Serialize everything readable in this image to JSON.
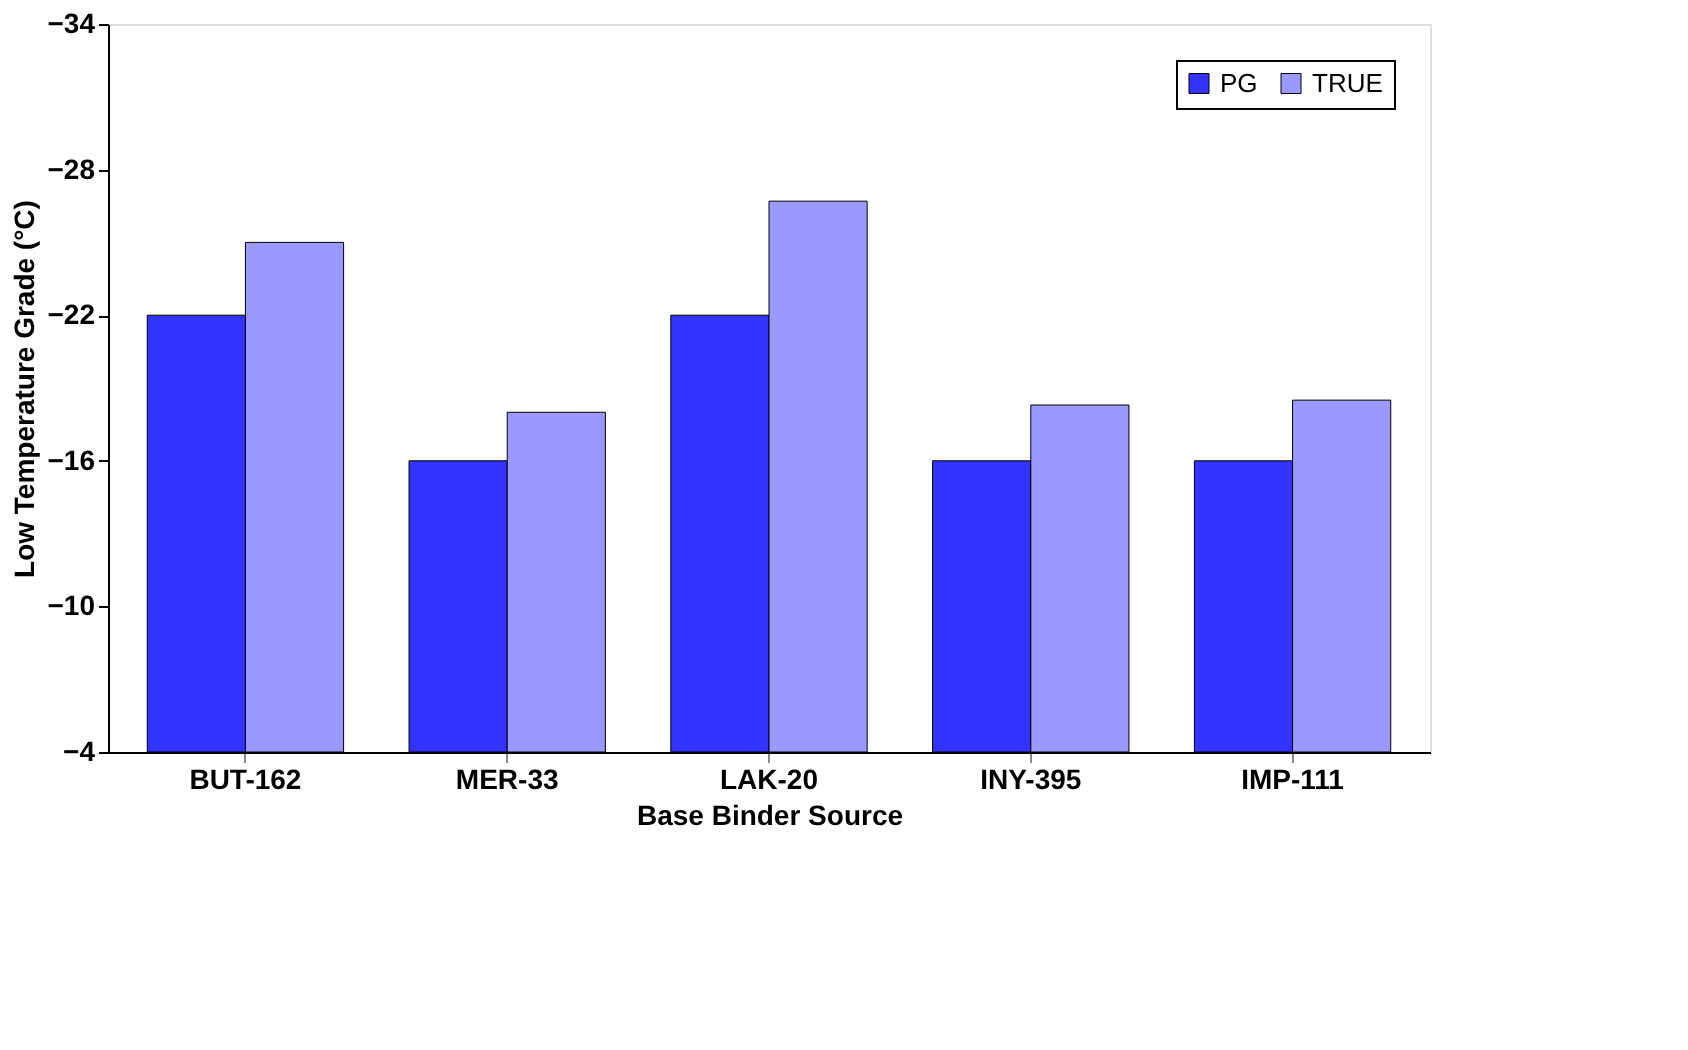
{
  "chart_data": {
    "type": "bar",
    "xlabel": "Base Binder Source",
    "ylabel": "Low Temperature Grade (°C)",
    "categories": [
      "BUT-162",
      "MER-33",
      "LAK-20",
      "INY-395",
      "IMP-111"
    ],
    "series": [
      {
        "name": "PG",
        "color": "#3333ff",
        "values": [
          -22,
          -16,
          -22,
          -16,
          -16
        ]
      },
      {
        "name": "TRUE",
        "color": "#9999ff",
        "values": [
          -25.0,
          -18.0,
          -26.7,
          -18.3,
          -18.5
        ]
      }
    ],
    "ylim": [
      -4,
      -34
    ],
    "yticks": [
      -4,
      -10,
      -16,
      -22,
      -28,
      -34
    ],
    "grid": false,
    "legend": "top right"
  }
}
